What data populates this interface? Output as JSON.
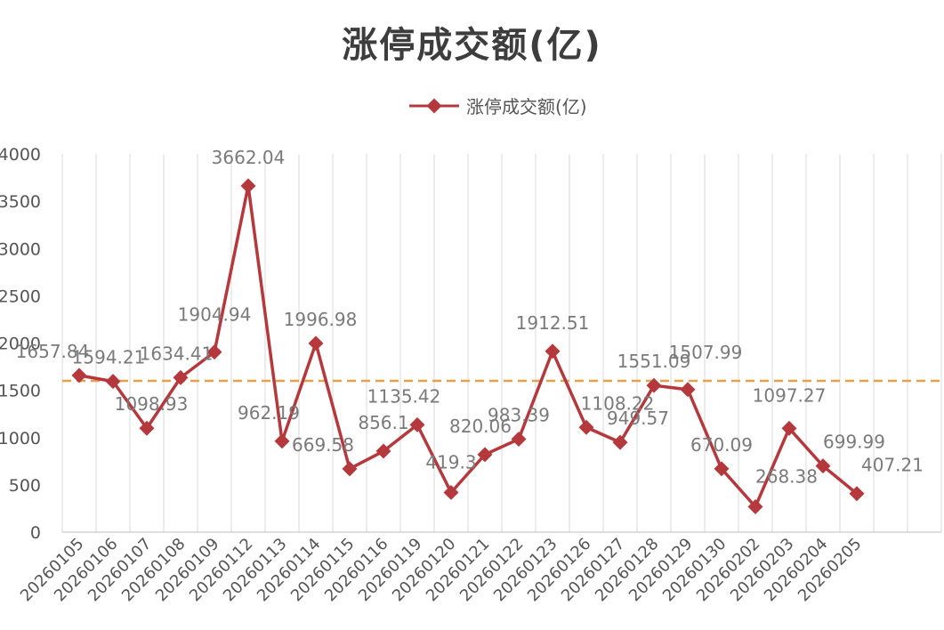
{
  "chart_data": {
    "type": "line",
    "title": "涨停成交额(亿)",
    "xlabel": "",
    "ylabel": "",
    "ylim": [
      0,
      4000
    ],
    "yticks": [
      0,
      500,
      1000,
      1500,
      2000,
      2500,
      3000,
      3500,
      4000
    ],
    "categories": [
      "20260105",
      "20260106",
      "20260107",
      "20260108",
      "20260109",
      "20260112",
      "20260113",
      "20260114",
      "20260115",
      "20260116",
      "20260119",
      "20260120",
      "20260121",
      "20260122",
      "20260123",
      "20260126",
      "20260127",
      "20260128",
      "20260129",
      "20260130",
      "20260202",
      "20260203",
      "20260204",
      "20260205"
    ],
    "series": [
      {
        "name": "涨停成交额(亿)",
        "values": [
          1657.84,
          1594.21,
          1098.93,
          1634.41,
          1904.94,
          3662.04,
          962.19,
          1996.98,
          669.58,
          856.1,
          1135.42,
          419.3,
          820.06,
          983.39,
          1912.51,
          1108.22,
          949.57,
          1551.09,
          1507.99,
          670.09,
          268.38,
          1097.27,
          699.99,
          407.21
        ],
        "data_labels": [
          "1657.84",
          "1594.21",
          "1098.93",
          "1634.41",
          "1904.94",
          "3662.04",
          "962.19",
          "1996.98",
          "669.58",
          "856.1",
          "1135.42",
          "419.3",
          "820.06",
          "983.39",
          "1912.51",
          "1108.22",
          "949.57",
          "1551.09",
          "1507.99",
          "670.09",
          "268.38",
          "1097.27",
          "699.99",
          "407.21"
        ]
      }
    ],
    "reference_line": {
      "value": 1600,
      "style": "dashed"
    },
    "grid": "vertical",
    "legend_position": "top",
    "colors": {
      "series": "#b5393c",
      "reference_line": "#e8a14a",
      "grid": "#d9d9d9"
    }
  }
}
